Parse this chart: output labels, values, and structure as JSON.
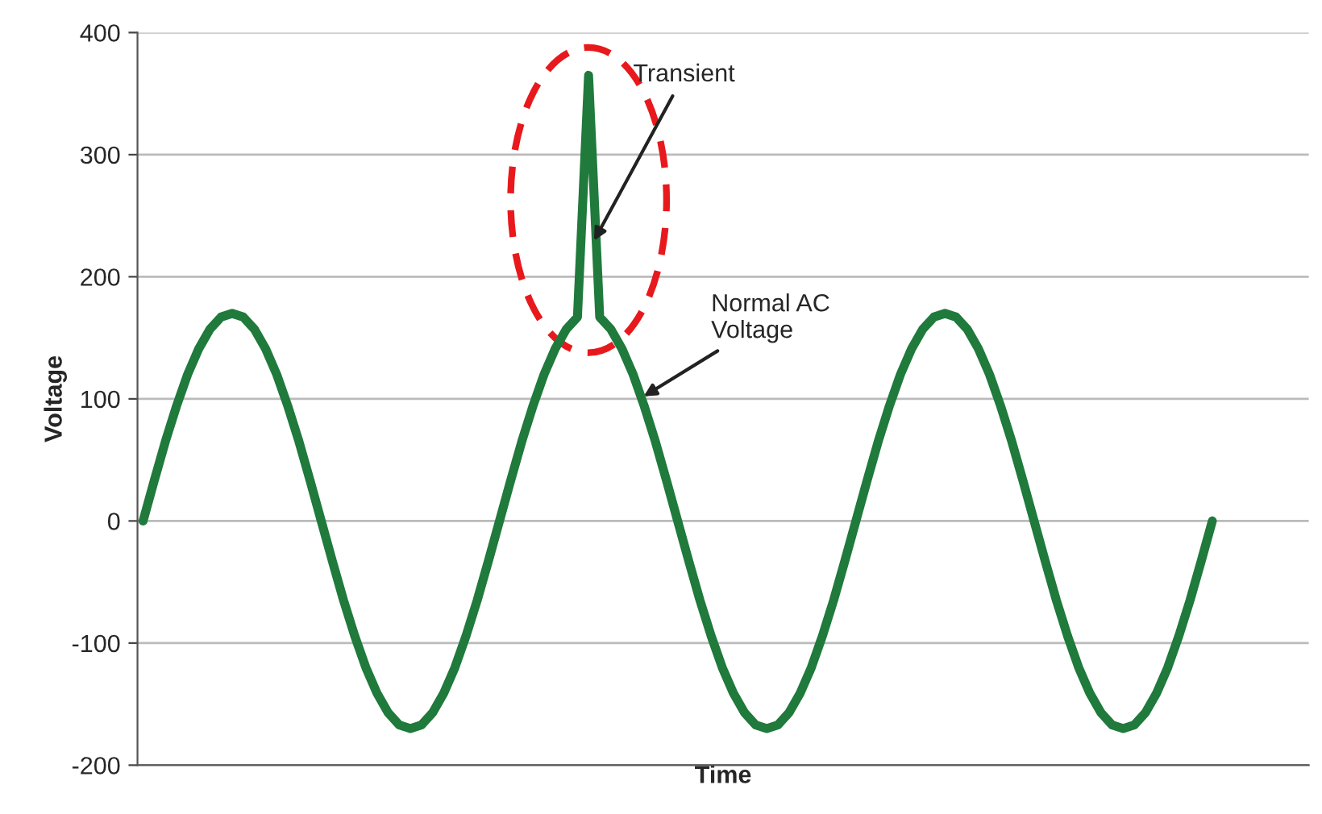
{
  "chart_data": {
    "type": "line",
    "xlabel": "Time",
    "ylabel": "Voltage",
    "categories": [
      null,
      null,
      null,
      null,
      null,
      null,
      null,
      null,
      null,
      null,
      null,
      null,
      null,
      null,
      null,
      null,
      null,
      null,
      null,
      null,
      null,
      null,
      null,
      null,
      null,
      null,
      null,
      null,
      null,
      null,
      null,
      null,
      null,
      null,
      null,
      null,
      null,
      null,
      null,
      null,
      null,
      null,
      null,
      null,
      null,
      null,
      null,
      null,
      null,
      null,
      null,
      null,
      null,
      null,
      null,
      null,
      null,
      null,
      null,
      null,
      null,
      null,
      null,
      null,
      null,
      null,
      null,
      null,
      null,
      null,
      null,
      null,
      null,
      null,
      null,
      null,
      null,
      null,
      null,
      null,
      null,
      null,
      null,
      null,
      null,
      null,
      null,
      null,
      null,
      null,
      null,
      null,
      null,
      null,
      null,
      null,
      null
    ],
    "series": [
      {
        "color": "#1f7a3c",
        "values": [
          0,
          33,
          65,
          94,
          120,
          141,
          157,
          167,
          170,
          167,
          157,
          141,
          120,
          94,
          65,
          33,
          0,
          -33,
          -65,
          -94,
          -120,
          -141,
          -157,
          -167,
          -170,
          -167,
          -157,
          -141,
          -120,
          -94,
          -65,
          -33,
          0,
          33,
          65,
          94,
          120,
          141,
          157,
          167,
          365,
          167,
          157,
          141,
          120,
          94,
          65,
          33,
          0,
          -33,
          -65,
          -94,
          -120,
          -141,
          -157,
          -167,
          -170,
          -167,
          -157,
          -141,
          -120,
          -94,
          -65,
          -33,
          0,
          33,
          65,
          94,
          120,
          141,
          157,
          167,
          170,
          167,
          157,
          141,
          120,
          94,
          65,
          33,
          0,
          -33,
          -65,
          -94,
          -120,
          -141,
          -157,
          -167,
          -170,
          -167,
          -157,
          -141,
          -120,
          -94,
          -65,
          -33,
          0
        ]
      }
    ],
    "ylim": [
      -200,
      400
    ],
    "yticks": [
      -200,
      -100,
      0,
      100,
      200,
      300,
      400
    ],
    "grid": "y",
    "legend": false,
    "marker": "none",
    "line_style": "solid",
    "tick_labels": "y",
    "annotations": [
      "Transient",
      "Normal AC\nVoltage"
    ]
  }
}
